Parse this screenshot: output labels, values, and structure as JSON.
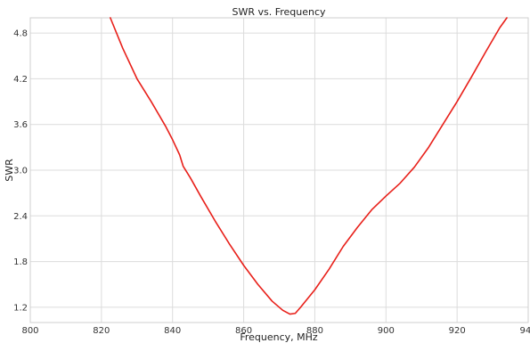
{
  "chart_data": {
    "type": "line",
    "title": "SWR vs. Frequency",
    "xlabel": "Frequency, MHz",
    "ylabel": "SWR",
    "xlim": [
      800,
      940
    ],
    "ylim": [
      1.0,
      5.0
    ],
    "xticks": [
      800,
      820,
      840,
      860,
      880,
      900,
      920,
      940
    ],
    "yticks": [
      1.2,
      1.8,
      2.4,
      3.0,
      3.6,
      4.2,
      4.8
    ],
    "grid": true,
    "series": [
      {
        "color": "#e8201a",
        "x": [
          822.5,
          826,
          830,
          834,
          838,
          840,
          842,
          843,
          845,
          848,
          852,
          856,
          860,
          864,
          868,
          871,
          873,
          874.5,
          876,
          880,
          884,
          888,
          892,
          896,
          900,
          904,
          908,
          912,
          916,
          920,
          924,
          928,
          932,
          934
        ],
        "y": [
          5.0,
          4.6,
          4.2,
          3.9,
          3.58,
          3.4,
          3.2,
          3.05,
          2.9,
          2.65,
          2.33,
          2.03,
          1.75,
          1.5,
          1.28,
          1.16,
          1.11,
          1.12,
          1.2,
          1.43,
          1.7,
          2.0,
          2.25,
          2.48,
          2.66,
          2.83,
          3.04,
          3.3,
          3.6,
          3.9,
          4.22,
          4.55,
          4.87,
          5.0
        ]
      }
    ]
  }
}
